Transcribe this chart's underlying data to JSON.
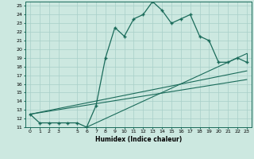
{
  "xlabel": "Humidex (Indice chaleur)",
  "ylabel": "",
  "background_color": "#cce8e0",
  "line_color": "#1a6b5a",
  "grid_color": "#a8cfc8",
  "xlim": [
    -0.5,
    23.5
  ],
  "ylim": [
    11,
    25.5
  ],
  "yticks": [
    11,
    12,
    13,
    14,
    15,
    16,
    17,
    18,
    19,
    20,
    21,
    22,
    23,
    24,
    25
  ],
  "xticks": [
    0,
    1,
    2,
    3,
    5,
    6,
    7,
    8,
    9,
    10,
    11,
    12,
    13,
    14,
    15,
    16,
    17,
    18,
    19,
    20,
    21,
    22,
    23
  ],
  "xtick_labels": [
    "0",
    "1",
    "2",
    "3",
    "5",
    "6",
    "7",
    "8",
    "9",
    "10",
    "11",
    "12",
    "13",
    "14",
    "15",
    "16",
    "17",
    "18",
    "19",
    "20",
    "21",
    "22",
    "23"
  ],
  "main_line_x": [
    0,
    1,
    2,
    3,
    4,
    5,
    6,
    7,
    8,
    9,
    10,
    11,
    12,
    13,
    14,
    15,
    16,
    17,
    18,
    19,
    20,
    21,
    22,
    23
  ],
  "main_line_y": [
    12.5,
    11.5,
    11.5,
    11.5,
    11.5,
    11.5,
    11.0,
    13.5,
    19.0,
    22.5,
    21.5,
    23.5,
    24.0,
    25.5,
    24.5,
    23.0,
    23.5,
    24.0,
    21.5,
    21.0,
    18.5,
    18.5,
    19.0,
    18.5
  ],
  "line1_x": [
    0,
    23
  ],
  "line1_y": [
    12.5,
    17.5
  ],
  "line2_x": [
    0,
    23
  ],
  "line2_y": [
    12.5,
    16.5
  ],
  "line3_x": [
    6,
    23
  ],
  "line3_y": [
    11.0,
    19.5
  ],
  "close_line_x": [
    23,
    23
  ],
  "close_line_y": [
    18.5,
    19.5
  ]
}
